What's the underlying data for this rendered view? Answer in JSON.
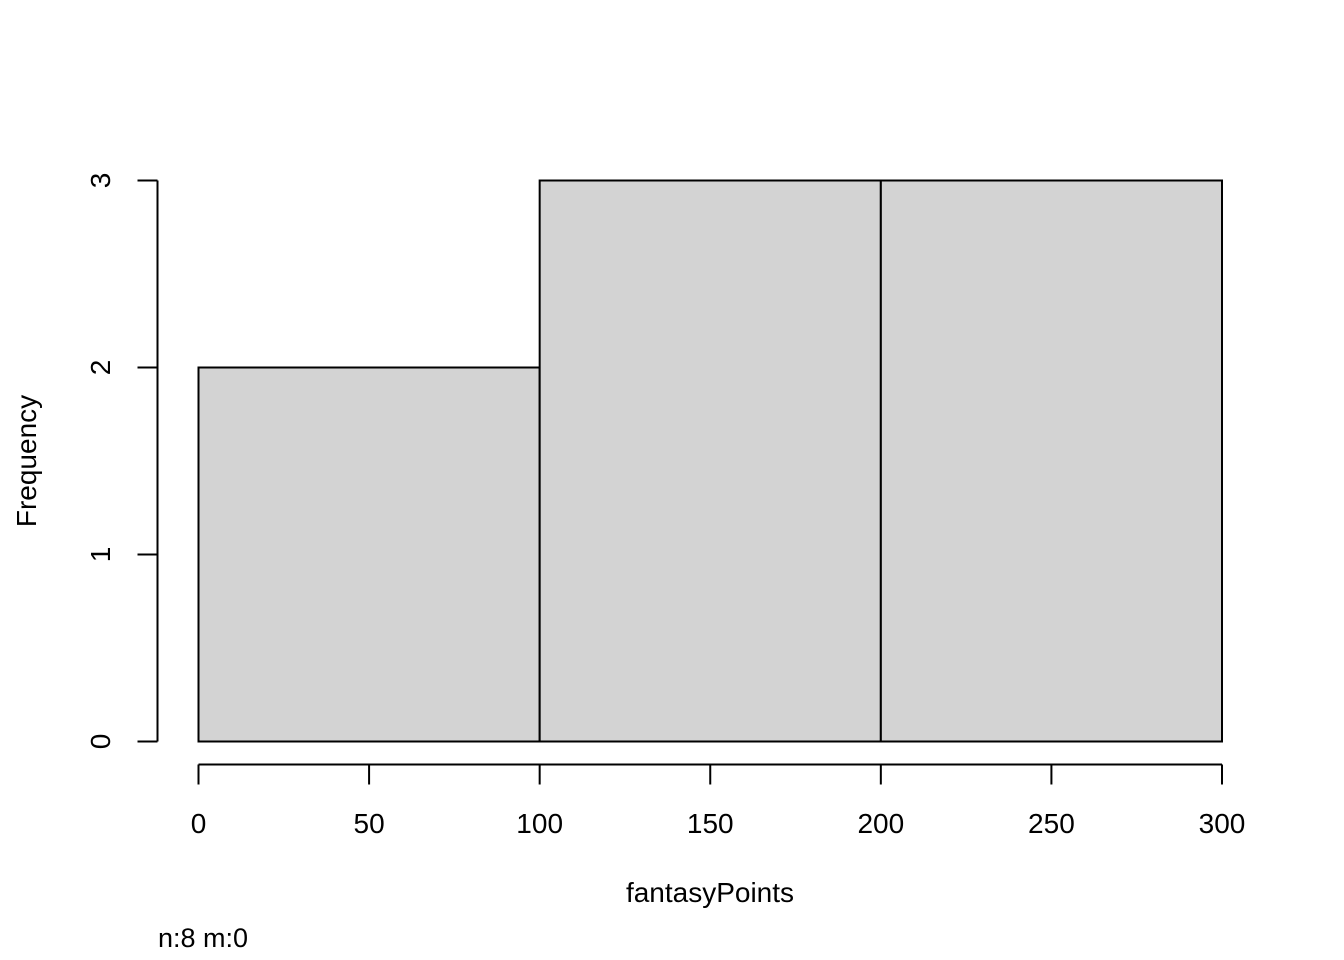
{
  "chart_data": {
    "type": "bar",
    "subtype": "histogram",
    "bins": [
      {
        "from": 0,
        "to": 100,
        "count": 2
      },
      {
        "from": 100,
        "to": 200,
        "count": 3
      },
      {
        "from": 200,
        "to": 300,
        "count": 3
      }
    ],
    "title": "",
    "xlabel": "fantasyPoints",
    "ylabel": "Frequency",
    "xlim": [
      0,
      300
    ],
    "ylim": [
      0,
      3
    ],
    "x_ticks": [
      "0",
      "50",
      "100",
      "150",
      "200",
      "250",
      "300"
    ],
    "y_ticks": [
      "0",
      "1",
      "2",
      "3"
    ],
    "grid": false,
    "legend": "none",
    "annotation": "n:8 m:0",
    "colors": {
      "bar_fill": "#d3d3d3",
      "bar_stroke": "#000000",
      "axis": "#000000"
    }
  }
}
